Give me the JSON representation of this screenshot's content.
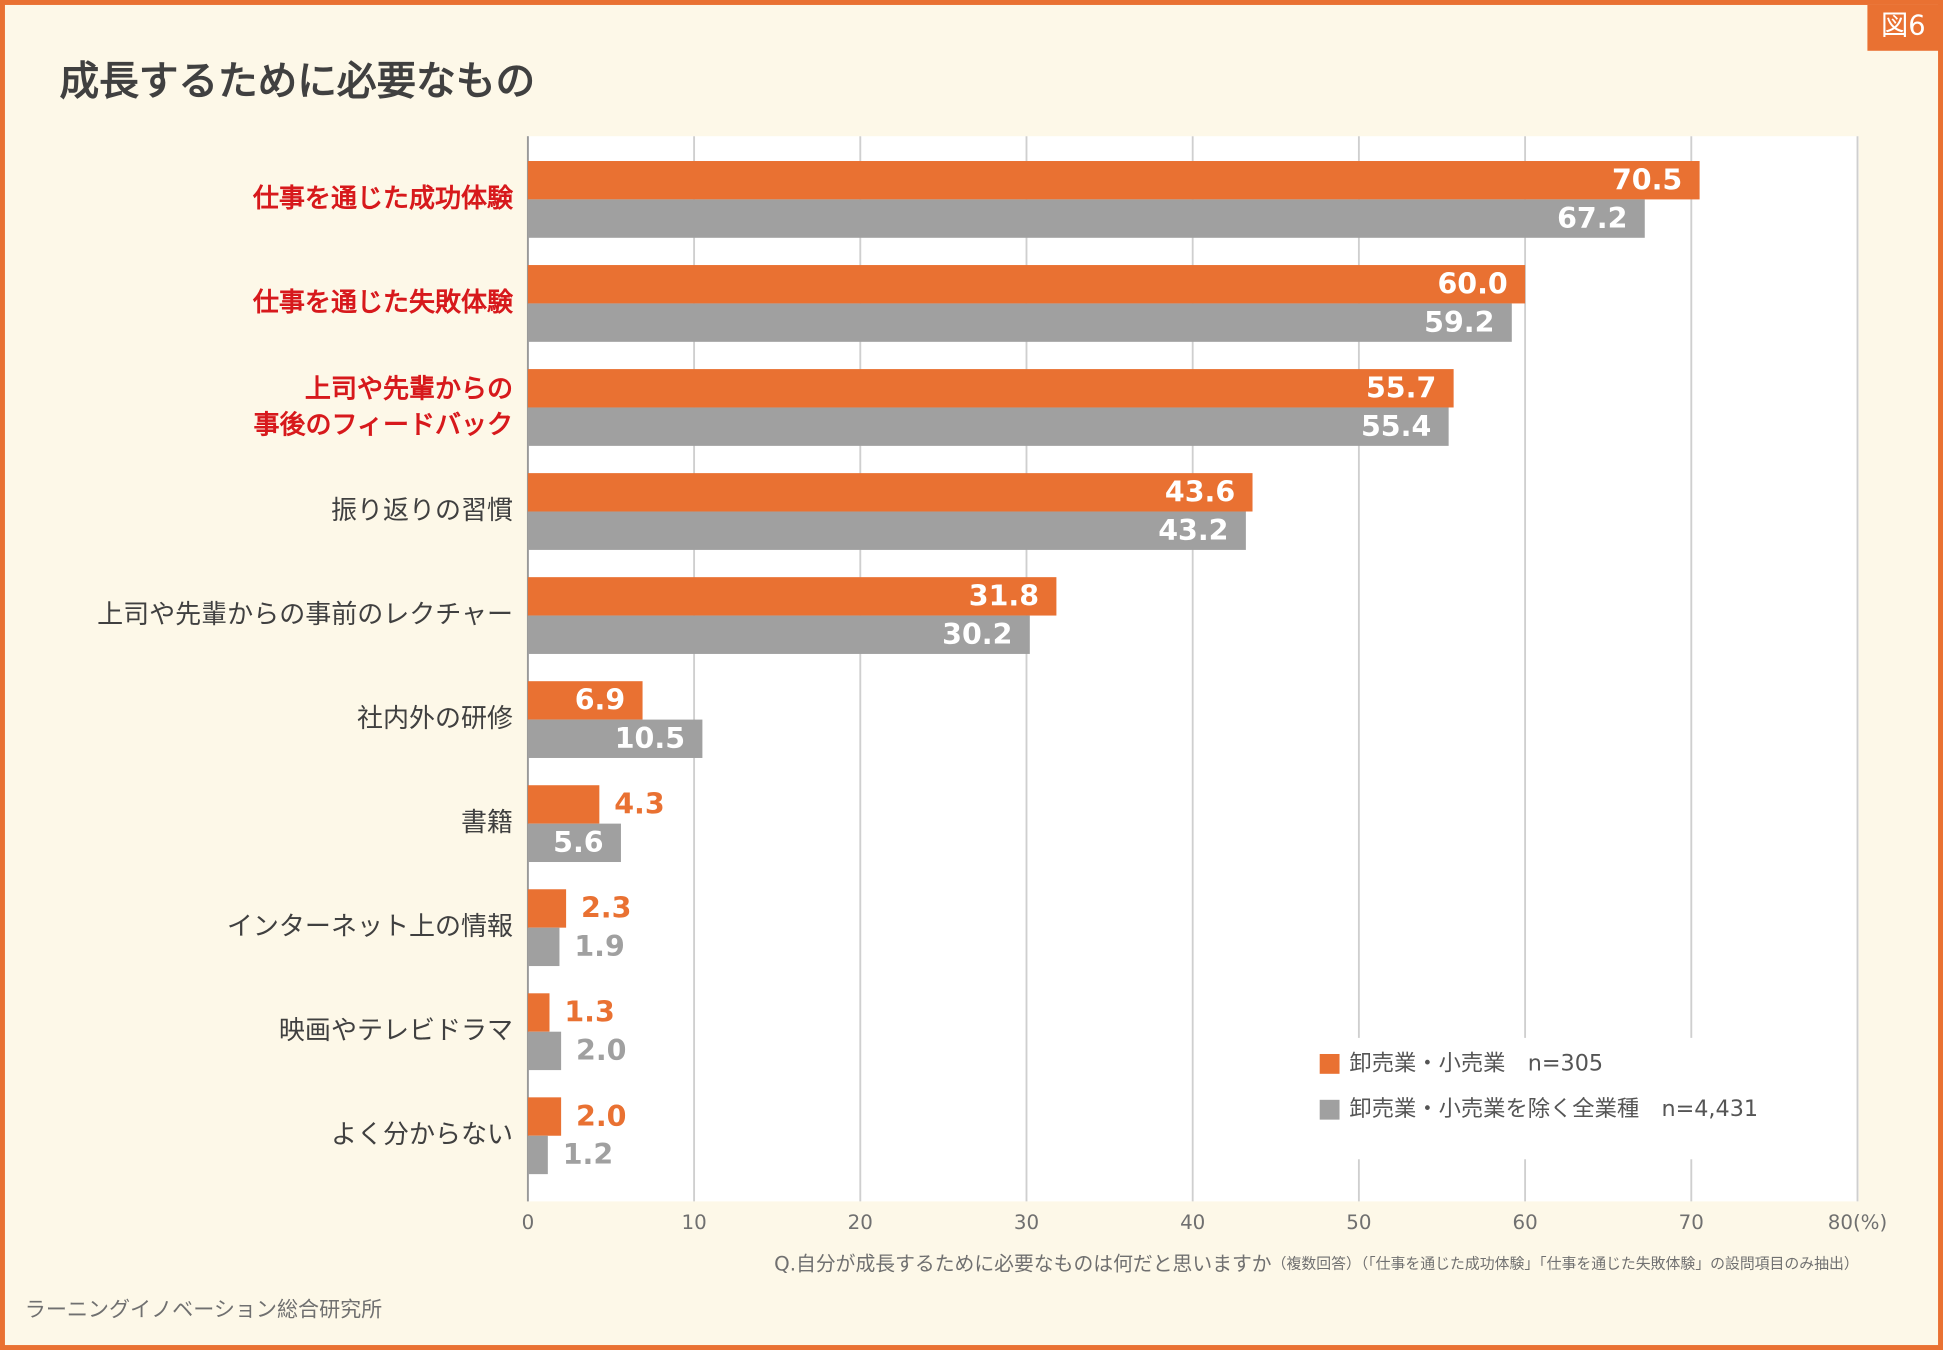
{
  "badge": "図6",
  "source": "ラーニングイノベーション総合研究所",
  "chart_data": {
    "type": "hbar",
    "title": "成長するために必要なもの",
    "categories": [
      "仕事を通じた成功体験",
      "仕事を通じた失敗体験",
      "上司や先輩からの\n事後のフィードバック",
      "振り返りの習慣",
      "上司や先輩からの事前のレクチャー",
      "社内外の研修",
      "書籍",
      "インターネット上の情報",
      "映画やテレビドラマ",
      "よく分からない"
    ],
    "category_colors": [
      "#d7191c",
      "#d7191c",
      "#d7191c",
      "#404040",
      "#404040",
      "#404040",
      "#404040",
      "#404040",
      "#404040",
      "#404040"
    ],
    "series": [
      {
        "name": "卸売業・小売業　n=305",
        "color": "#e97132",
        "values": [
          70.5,
          60.0,
          55.7,
          43.6,
          31.8,
          6.9,
          4.3,
          2.3,
          1.3,
          2.0
        ],
        "value_labels": [
          "70.5",
          "60.0",
          "55.7",
          "43.6",
          "31.8",
          "6.9",
          "4.3",
          "2.3",
          "1.3",
          "2.0"
        ]
      },
      {
        "name": "卸売業・小売業を除く全業種　n=4,431",
        "color": "#a0a0a0",
        "values": [
          67.2,
          59.2,
          55.4,
          43.2,
          30.2,
          10.5,
          5.6,
          1.9,
          2.0,
          1.2
        ],
        "value_labels": [
          "67.2",
          "59.2",
          "55.4",
          "43.2",
          "30.2",
          "10.5",
          "5.6",
          "1.9",
          "2.0",
          "1.2"
        ]
      }
    ],
    "xlim": [
      0,
      80
    ],
    "xticks": [
      0,
      10,
      20,
      30,
      40,
      50,
      60,
      70,
      {
        "value": 80,
        "label": "80(%)"
      }
    ],
    "grid": true,
    "legend": "lower right",
    "question": "Q.自分が成長するために必要なものは何だと思いますか",
    "question_note": "（複数回答）（「仕事を通じた成功体験」「仕事を通じた失敗体験」の設問項目のみ抽出）"
  }
}
